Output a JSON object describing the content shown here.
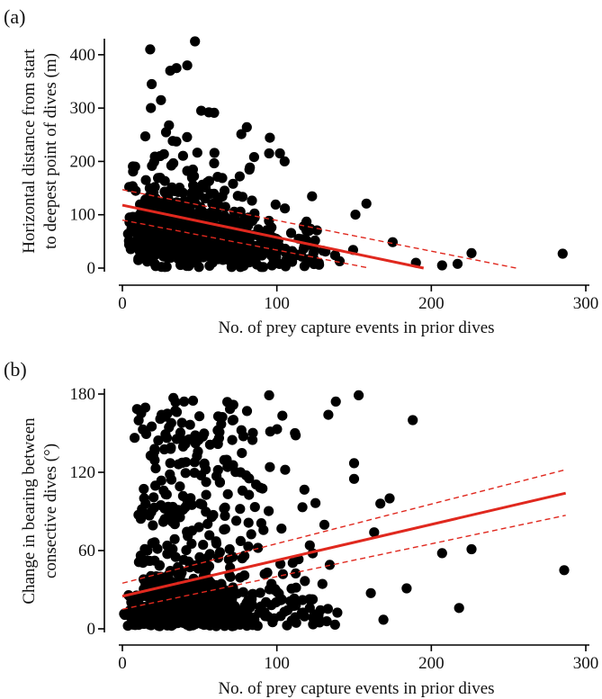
{
  "chart_data": [
    {
      "type": "scatter",
      "panel_label": "(a)",
      "xlabel": "No. of prey capture events in prior dives",
      "ylabel_lines": [
        "Horizontal distance from start",
        "to deepest point of dives (m)"
      ],
      "xlim": [
        0,
        300
      ],
      "ylim": [
        0,
        420
      ],
      "xticks": [
        0,
        100,
        200,
        300
      ],
      "yticks": [
        0,
        100,
        200,
        300,
        400
      ],
      "fit_line": {
        "x": [
          0,
          195
        ],
        "y": [
          118,
          0
        ]
      },
      "ci_upper": {
        "x": [
          0,
          255
        ],
        "y": [
          147,
          0
        ]
      },
      "ci_lower": {
        "x": [
          0,
          160
        ],
        "y": [
          90,
          0
        ]
      },
      "outliers": [
        [
          18,
          410
        ],
        [
          47,
          425
        ],
        [
          42,
          380
        ],
        [
          35,
          375
        ],
        [
          31,
          370
        ],
        [
          19,
          345
        ],
        [
          25,
          315
        ],
        [
          51,
          295
        ],
        [
          56,
          292
        ],
        [
          158,
          121
        ],
        [
          285,
          27
        ],
        [
          226,
          28
        ],
        [
          217,
          8
        ],
        [
          207,
          5
        ],
        [
          190,
          10
        ],
        [
          95,
          215
        ],
        [
          102,
          215
        ],
        [
          105,
          200
        ]
      ],
      "generated_cloud": {
        "seed": 11,
        "count": 820,
        "x_max": 175
      }
    },
    {
      "type": "scatter",
      "panel_label": "(b)",
      "xlabel": "No. of prey capture events in prior dives",
      "ylabel_lines": [
        "Change in bearing between",
        "consective dives (°)"
      ],
      "xlim": [
        0,
        300
      ],
      "ylim": [
        0,
        180
      ],
      "xticks": [
        0,
        100,
        200,
        300
      ],
      "yticks": [
        0,
        60,
        120,
        180
      ],
      "fit_line": {
        "x": [
          0,
          287
        ],
        "y": [
          25,
          104
        ]
      },
      "ci_upper": {
        "x": [
          0,
          287
        ],
        "y": [
          35,
          122
        ]
      },
      "ci_lower": {
        "x": [
          0,
          287
        ],
        "y": [
          15,
          87
        ]
      },
      "outliers": [
        [
          188,
          160
        ],
        [
          153,
          179
        ],
        [
          95,
          179
        ],
        [
          33,
          177
        ],
        [
          207,
          58
        ],
        [
          226,
          61
        ],
        [
          286,
          45
        ],
        [
          184,
          31
        ],
        [
          218,
          16
        ],
        [
          169,
          7
        ],
        [
          173,
          100
        ],
        [
          167,
          96
        ],
        [
          163,
          74
        ],
        [
          150,
          127
        ],
        [
          150,
          115
        ]
      ],
      "generated_cloud": {
        "seed": 23,
        "count": 780,
        "x_max": 170
      }
    }
  ]
}
